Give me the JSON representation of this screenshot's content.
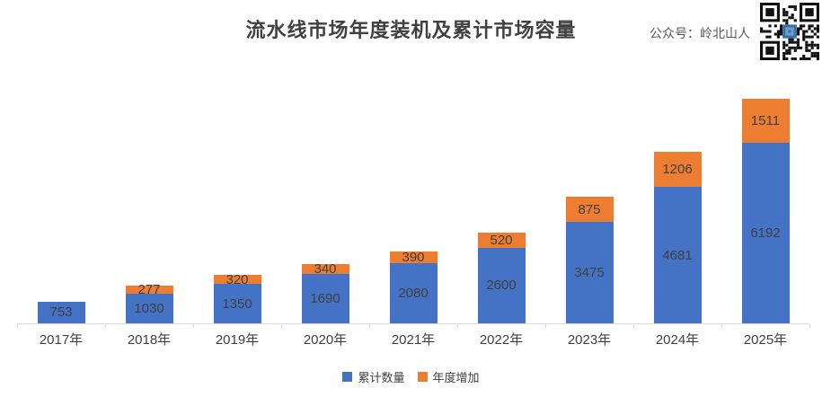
{
  "header": {
    "title": "流水线市场年度装机及累计市场容量",
    "account_label": "公众号：岭北山人",
    "qr_icon": "qr-code"
  },
  "colors": {
    "cumulative_blue": "#4472C4",
    "annual_orange": "#ED7D31",
    "label_text": "#404040",
    "axis_gray": "#D9D9D9",
    "qr_logo_blue": "#3B6EA5"
  },
  "chart_data": {
    "type": "bar",
    "stacked": true,
    "title": "流水线市场年度装机及累计市场容量",
    "xlabel": "",
    "ylabel": "",
    "grid": false,
    "data_labels": true,
    "legend_position": "bottom",
    "categories": [
      "2017年",
      "2018年",
      "2019年",
      "2020年",
      "2021年",
      "2022年",
      "2023年",
      "2024年",
      "2025年"
    ],
    "series": [
      {
        "name": "累计数量",
        "color": "#4472C4",
        "values": [
          753,
          1030,
          1350,
          1690,
          2080,
          2600,
          3475,
          4681,
          6192
        ]
      },
      {
        "name": "年度增加",
        "color": "#ED7D31",
        "values": [
          null,
          277,
          320,
          340,
          390,
          520,
          875,
          1206,
          1511
        ]
      }
    ],
    "totals_implied": [
      753,
      1307,
      1670,
      2030,
      2470,
      3120,
      4350,
      5887,
      7703
    ]
  }
}
